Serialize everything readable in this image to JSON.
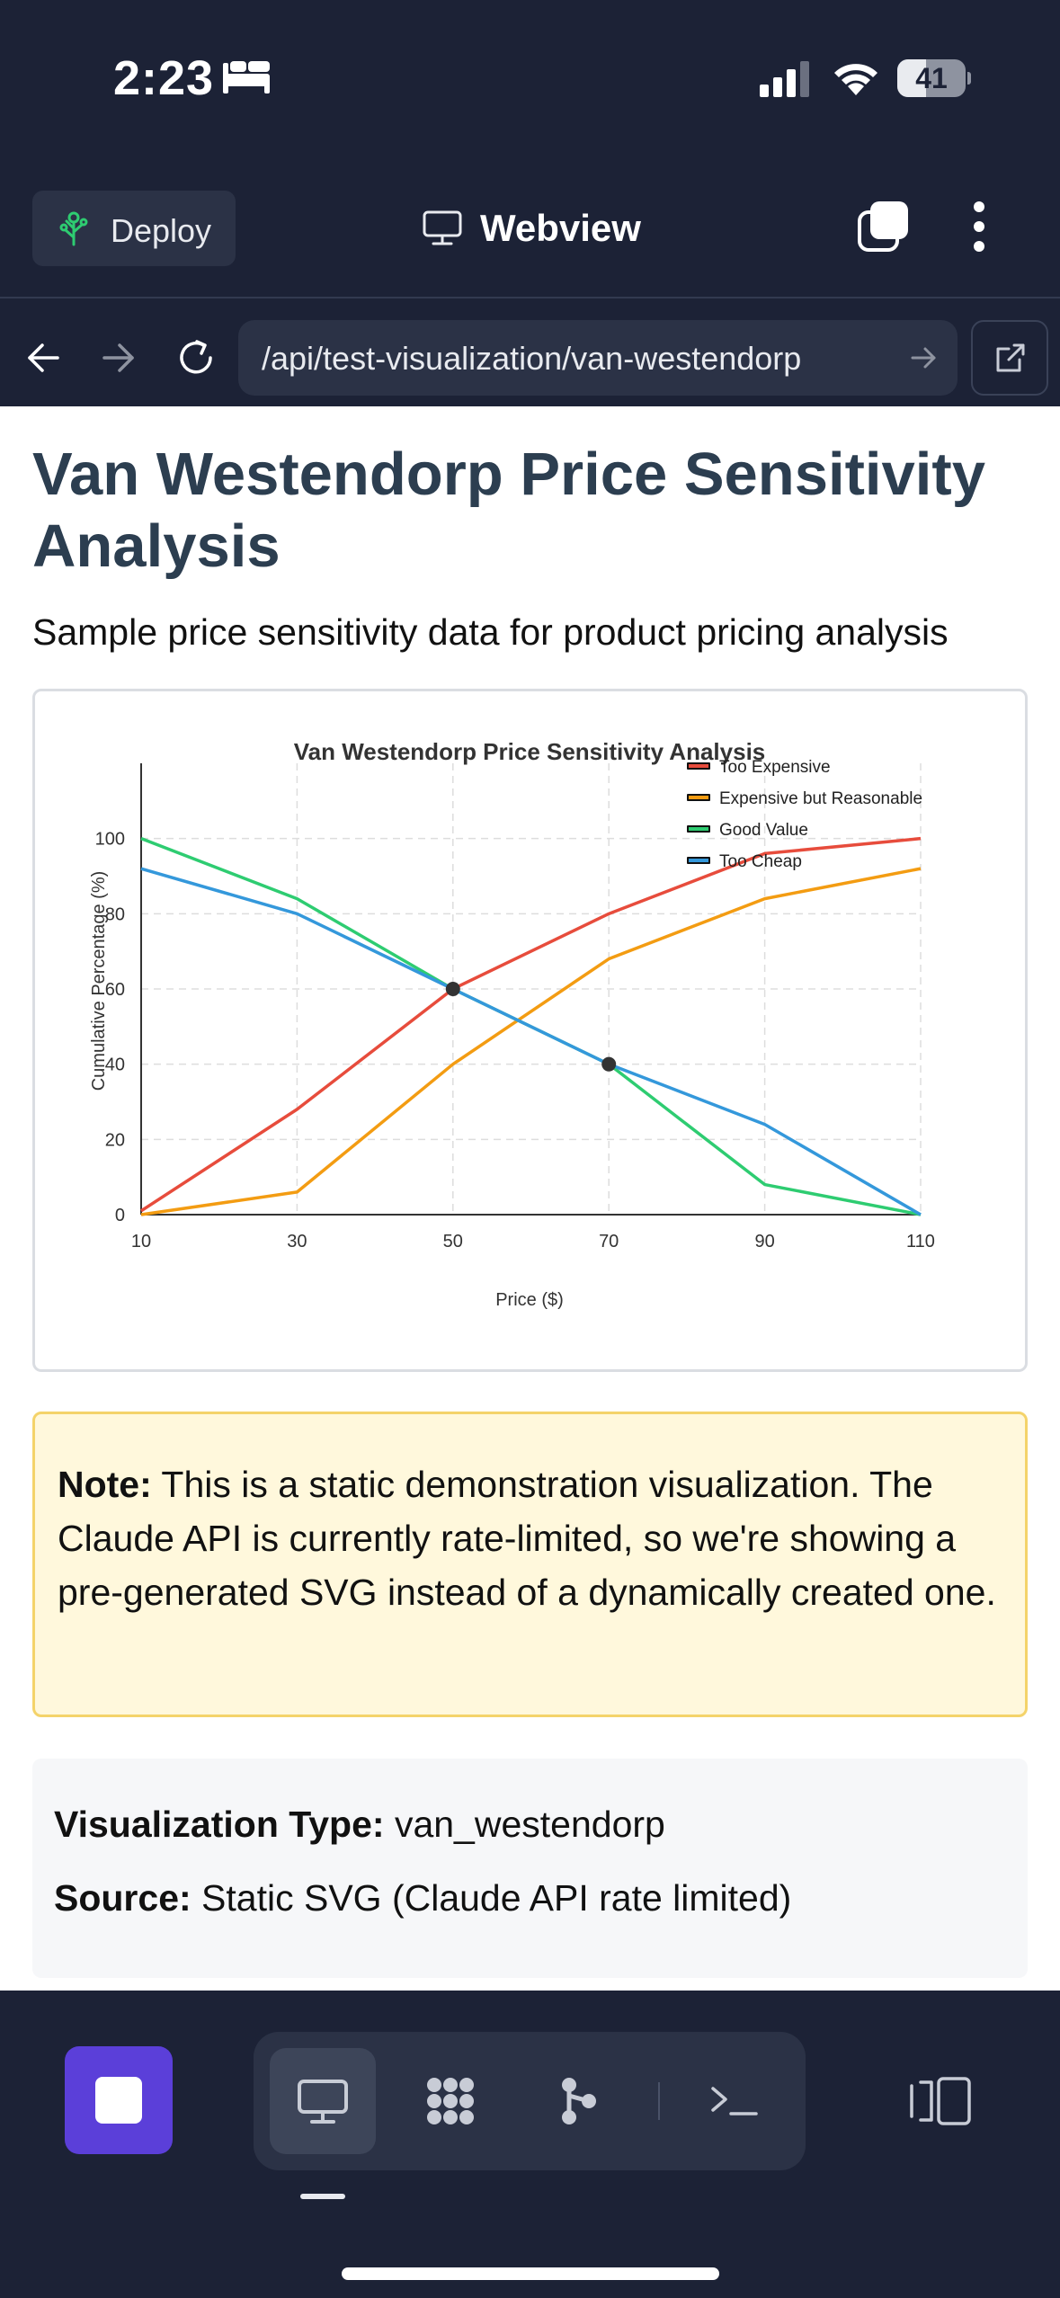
{
  "status_bar": {
    "time": "2:23",
    "battery": "41"
  },
  "toolbar": {
    "deploy_label": "Deploy",
    "title": "Webview"
  },
  "nav": {
    "url": "/api/test-visualization/van-westendorp"
  },
  "page": {
    "title": "Van Westendorp Price Sensitivity Analysis",
    "subtitle": "Sample price sensitivity data for product pricing analysis",
    "note_label": "Note:",
    "note_text": " This is a static demonstration visualization. The Claude API is currently rate-limited, so we're showing a pre-generated SVG instead of a dynamically created one.",
    "viz_type_label": "Visualization Type:",
    "viz_type_value": " van_westendorp",
    "source_label": "Source:",
    "source_value": " Static SVG (Claude API rate limited)"
  },
  "chart_data": {
    "type": "line",
    "title": "Van Westendorp Price Sensitivity Analysis",
    "xlabel": "Price ($)",
    "ylabel": "Cumulative Percentage (%)",
    "x": [
      10,
      30,
      50,
      70,
      90,
      110
    ],
    "xlim": [
      10,
      110
    ],
    "ylim": [
      0,
      120
    ],
    "yticks": [
      0,
      20,
      40,
      60,
      80,
      100
    ],
    "grid": true,
    "legend_position": "top-right",
    "series": [
      {
        "name": "Too Expensive",
        "color": "#e74c3c",
        "values": [
          1,
          28,
          60,
          80,
          96,
          100
        ]
      },
      {
        "name": "Expensive but Reasonable",
        "color": "#f39c12",
        "values": [
          0,
          6,
          40,
          68,
          84,
          92
        ]
      },
      {
        "name": "Good Value",
        "color": "#2ecc71",
        "values": [
          100,
          84,
          60,
          40,
          8,
          0
        ]
      },
      {
        "name": "Too Cheap",
        "color": "#3498db",
        "values": [
          92,
          80,
          60,
          40,
          24,
          0
        ]
      }
    ],
    "markers": [
      {
        "x": 50,
        "y": 60
      },
      {
        "x": 70,
        "y": 40
      }
    ]
  },
  "colors": {
    "background": "#1c2236",
    "accent": "#5b3fd9",
    "title": "#2c3e50"
  },
  "icons": {
    "bed": "bed-icon",
    "signal": "cellular-signal-icon",
    "wifi": "wifi-icon",
    "deploy": "tree-icon",
    "monitor": "monitor-icon",
    "tabs": "tabs-icon",
    "more": "vertical-ellipsis-icon",
    "back": "arrow-left-icon",
    "forward": "arrow-right-icon",
    "reload": "reload-icon",
    "external": "external-link-icon",
    "stop": "stop-icon",
    "terminal": "terminal-icon",
    "panel": "side-panel-icon"
  }
}
